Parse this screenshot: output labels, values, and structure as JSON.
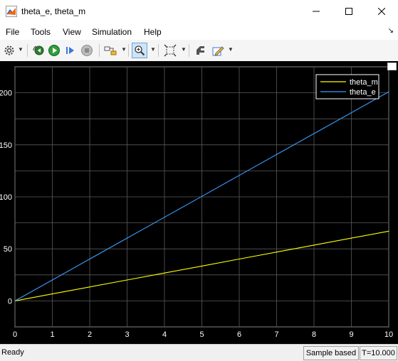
{
  "window": {
    "title": "theta_e, theta_m"
  },
  "menu": [
    "File",
    "Tools",
    "View",
    "Simulation",
    "Help"
  ],
  "toolbar": {
    "icons": [
      "gear-icon",
      "step-back-icon",
      "run-icon",
      "step-forward-icon",
      "stop-icon",
      "highlight-icon",
      "zoom-in-icon",
      "fit-icon",
      "style-icon",
      "edit-icon"
    ],
    "accent": "#3c78d8"
  },
  "status": {
    "left": "Ready",
    "mode": "Sample based",
    "time": "T=10.000"
  },
  "chart_data": {
    "type": "line",
    "xlim": [
      0,
      10
    ],
    "ylim": [
      -25,
      225
    ],
    "xticks": [
      "0",
      "1",
      "2",
      "3",
      "4",
      "5",
      "6",
      "7",
      "8",
      "9",
      "10"
    ],
    "yticks": [
      "0",
      "50",
      "100",
      "150",
      "200"
    ],
    "grid": true,
    "legend_position": "top-right",
    "series": [
      {
        "name": "theta_m",
        "color": "#ffff00",
        "x": [
          0,
          1,
          2,
          3,
          4,
          5,
          6,
          7,
          8,
          9,
          10
        ],
        "y": [
          0,
          6.7,
          13.4,
          20.1,
          26.8,
          33.5,
          40.2,
          46.9,
          53.6,
          60.3,
          67
        ]
      },
      {
        "name": "theta_e",
        "color": "#3a9cff",
        "x": [
          0,
          1,
          2,
          3,
          4,
          5,
          6,
          7,
          8,
          9,
          10
        ],
        "y": [
          0,
          20.1,
          40.2,
          60.3,
          80.4,
          100.5,
          120.6,
          140.7,
          160.8,
          180.9,
          201
        ]
      }
    ]
  }
}
